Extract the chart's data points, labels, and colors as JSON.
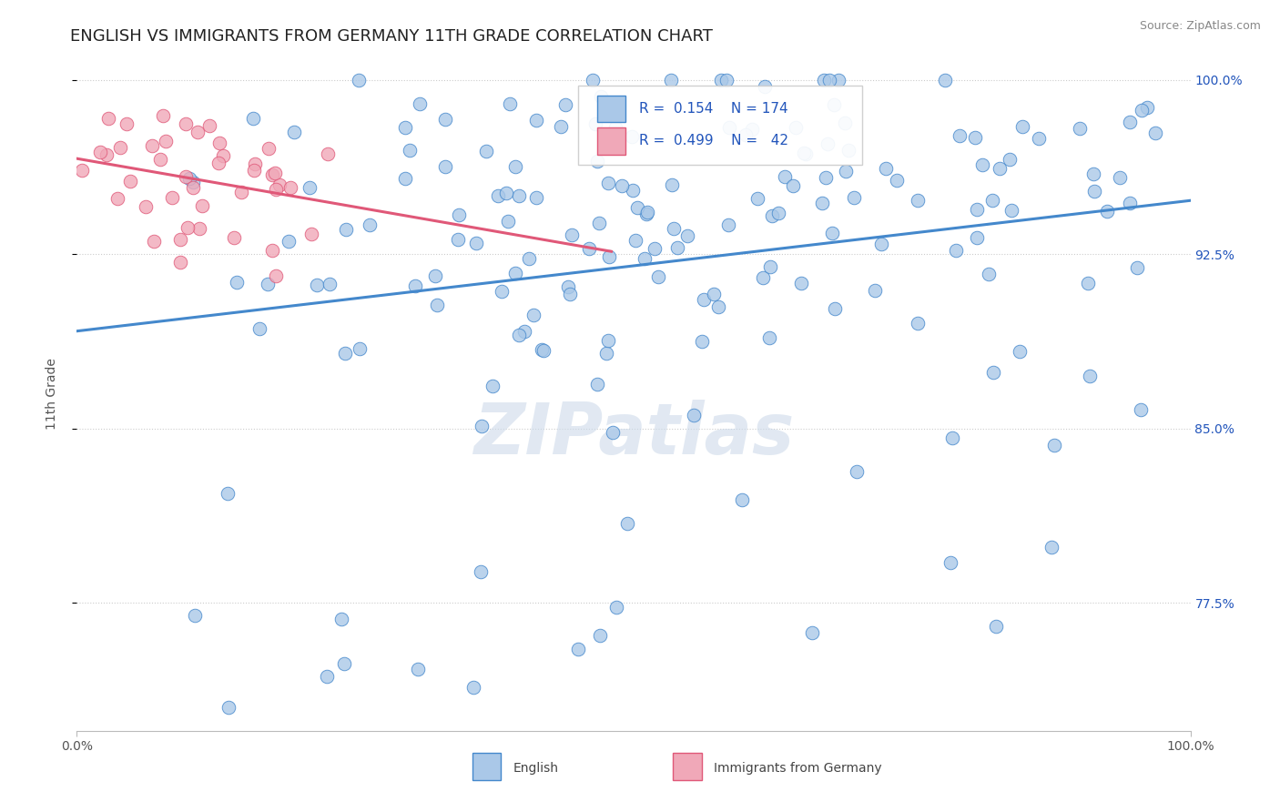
{
  "title": "ENGLISH VS IMMIGRANTS FROM GERMANY 11TH GRADE CORRELATION CHART",
  "source_text": "Source: ZipAtlas.com",
  "ylabel": "11th Grade",
  "x_min": 0.0,
  "x_max": 1.0,
  "y_min": 0.72,
  "y_max": 1.01,
  "y_tick_labels": [
    "77.5%",
    "85.0%",
    "92.5%",
    "100.0%"
  ],
  "y_tick_values": [
    0.775,
    0.85,
    0.925,
    1.0
  ],
  "R_english": 0.154,
  "N_english": 174,
  "R_germany": 0.499,
  "N_germany": 42,
  "color_english": "#aac8e8",
  "color_germany": "#f0a8b8",
  "line_color_english": "#4488cc",
  "line_color_germany": "#e05878",
  "watermark_color": "#cddaea",
  "grid_color": "#cccccc",
  "title_color": "#222222",
  "label_color": "#2255bb",
  "title_fontsize": 13,
  "axis_fontsize": 10,
  "seed": 42
}
